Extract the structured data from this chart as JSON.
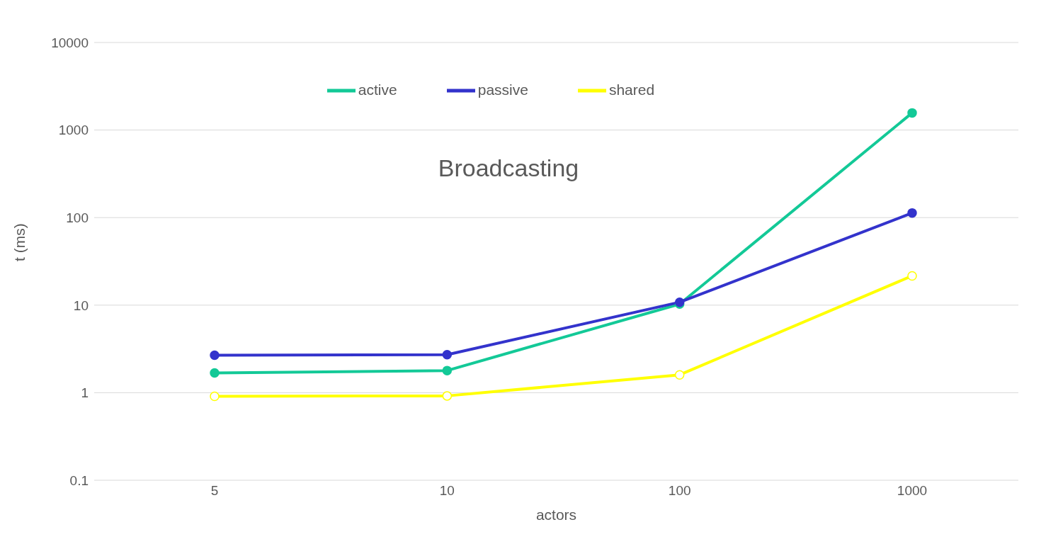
{
  "chart_data": {
    "type": "line",
    "title": "Broadcasting",
    "xlabel": "actors",
    "ylabel": "t (ms)",
    "categories": [
      "5",
      "10",
      "100",
      "1000"
    ],
    "series": [
      {
        "name": "active",
        "color": "#13c997",
        "values": [
          1.68,
          1.79,
          10.3,
          1570
        ]
      },
      {
        "name": "passive",
        "color": "#3333cc",
        "values": [
          2.68,
          2.72,
          10.8,
          113
        ]
      },
      {
        "name": "shared",
        "color": "#ffff00",
        "values": [
          0.91,
          0.92,
          1.6,
          21.6
        ]
      }
    ],
    "log": "y",
    "ylim": [
      0.1,
      10000
    ],
    "yticks": [
      0.1,
      1,
      10,
      100,
      1000,
      10000
    ],
    "grid": "y",
    "legend": "top",
    "marker": "circle",
    "line_style": "solid"
  }
}
